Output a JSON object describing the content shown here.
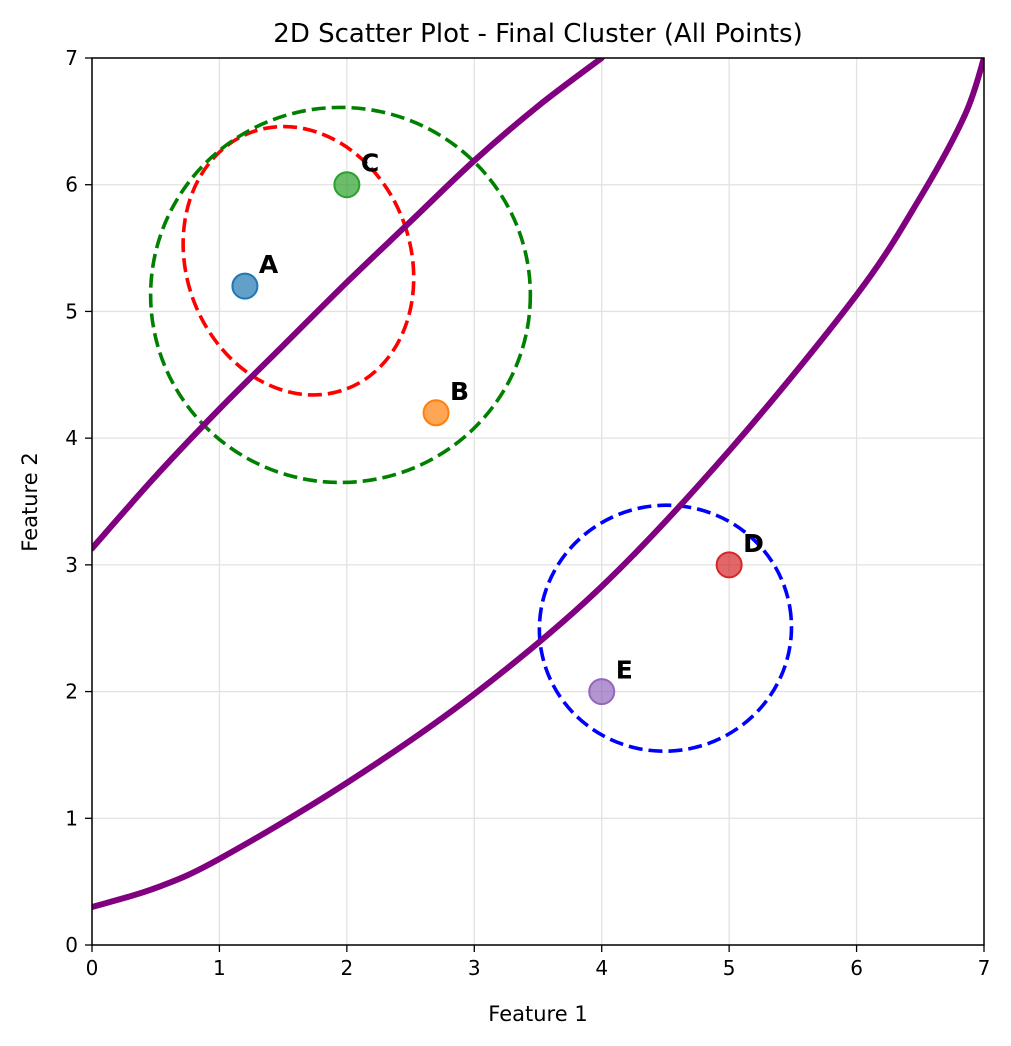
{
  "chart_data": {
    "type": "scatter",
    "title": "2D Scatter Plot - Final Cluster (All Points)",
    "xlabel": "Feature 1",
    "ylabel": "Feature 2",
    "xlim": [
      0,
      7
    ],
    "ylim": [
      0,
      7
    ],
    "xticks": [
      0,
      1,
      2,
      3,
      4,
      5,
      6,
      7
    ],
    "yticks": [
      0,
      1,
      2,
      3,
      4,
      5,
      6,
      7
    ],
    "grid": true,
    "points": [
      {
        "label": "A",
        "x": 1.2,
        "y": 5.2,
        "color": "#1f77b4"
      },
      {
        "label": "B",
        "x": 2.7,
        "y": 4.2,
        "color": "#ff7f0e"
      },
      {
        "label": "C",
        "x": 2.0,
        "y": 6.0,
        "color": "#2ca02c"
      },
      {
        "label": "D",
        "x": 5.0,
        "y": 3.0,
        "color": "#d62728"
      },
      {
        "label": "E",
        "x": 4.0,
        "y": 2.0,
        "color": "#9467bd"
      }
    ],
    "ellipses": [
      {
        "color": "#ff0000",
        "center": [
          1.62,
          5.4
        ],
        "rx": 0.88,
        "ry": 1.08,
        "angle_deg": 20,
        "style": "dashed"
      },
      {
        "color": "#008000",
        "center": [
          1.95,
          5.13
        ],
        "rx": 1.49,
        "ry": 1.48,
        "angle_deg": 0,
        "style": "dashed"
      },
      {
        "color": "#0000ff",
        "center": [
          4.5,
          2.5
        ],
        "rx": 0.99,
        "ry": 0.97,
        "angle_deg": 10,
        "style": "dashed"
      }
    ],
    "curves": [
      {
        "color": "#800080",
        "style": "solid",
        "points": [
          [
            0,
            3.13
          ],
          [
            0.5,
            3.7
          ],
          [
            1,
            4.23
          ],
          [
            1.5,
            4.73
          ],
          [
            2,
            5.23
          ],
          [
            2.5,
            5.71
          ],
          [
            3,
            6.19
          ],
          [
            3.5,
            6.62
          ],
          [
            4.0,
            7.0
          ]
        ]
      },
      {
        "color": "#800080",
        "style": "solid",
        "points": [
          [
            0,
            0.3
          ],
          [
            0.5,
            0.45
          ],
          [
            1,
            0.68
          ],
          [
            2,
            1.28
          ],
          [
            3,
            1.98
          ],
          [
            4,
            2.83
          ],
          [
            5,
            3.9
          ],
          [
            6,
            5.13
          ],
          [
            6.5,
            5.9
          ],
          [
            6.85,
            6.55
          ],
          [
            7,
            7.0
          ]
        ]
      }
    ]
  }
}
